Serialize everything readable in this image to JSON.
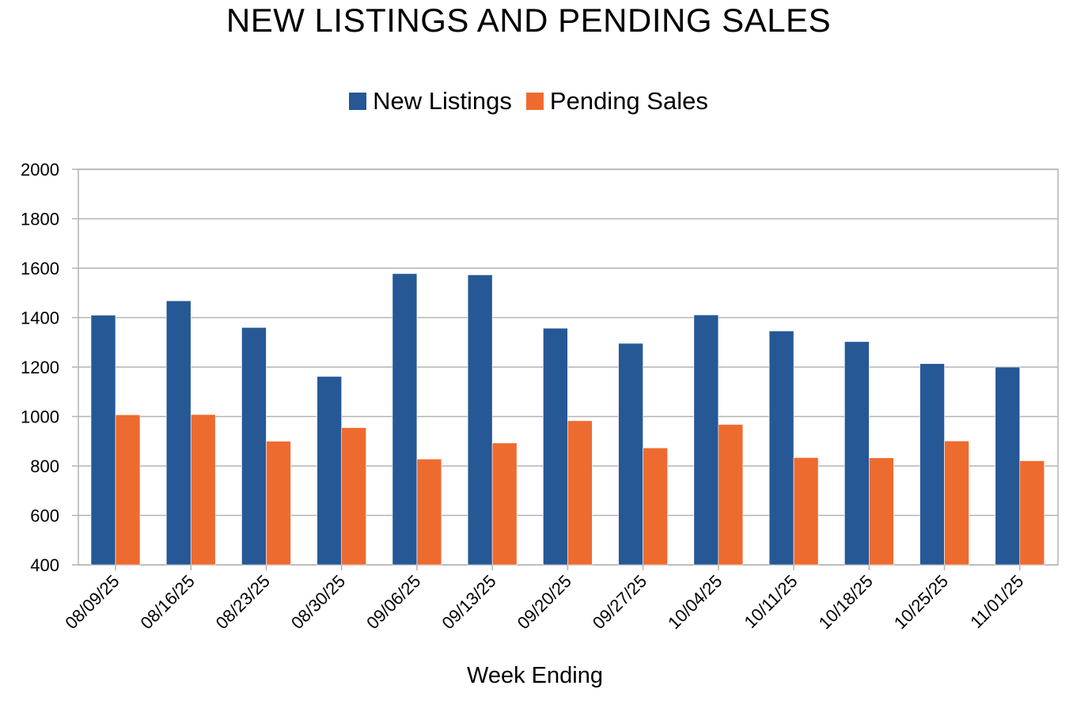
{
  "chart_data": {
    "type": "bar",
    "title": "NEW LISTINGS AND PENDING SALES",
    "xlabel": "Week Ending",
    "ylabel": "",
    "ylim": [
      400,
      2000
    ],
    "yticks": [
      400,
      600,
      800,
      1000,
      1200,
      1400,
      1600,
      1800,
      2000
    ],
    "grid": true,
    "legend_position": "top",
    "categories": [
      "08/09/25",
      "08/16/25",
      "08/23/25",
      "08/30/25",
      "09/06/25",
      "09/13/25",
      "09/20/25",
      "09/27/25",
      "10/04/25",
      "10/11/25",
      "10/18/25",
      "10/25/25",
      "11/01/25"
    ],
    "series": [
      {
        "name": "New Listings",
        "color": "#265896",
        "values": [
          1410,
          1468,
          1360,
          1162,
          1578,
          1573,
          1357,
          1296,
          1411,
          1346,
          1303,
          1214,
          1200
        ]
      },
      {
        "name": "Pending Sales",
        "color": "#EE6B2F",
        "values": [
          1007,
          1008,
          900,
          955,
          828,
          893,
          983,
          873,
          968,
          834,
          833,
          901,
          821
        ]
      }
    ]
  }
}
